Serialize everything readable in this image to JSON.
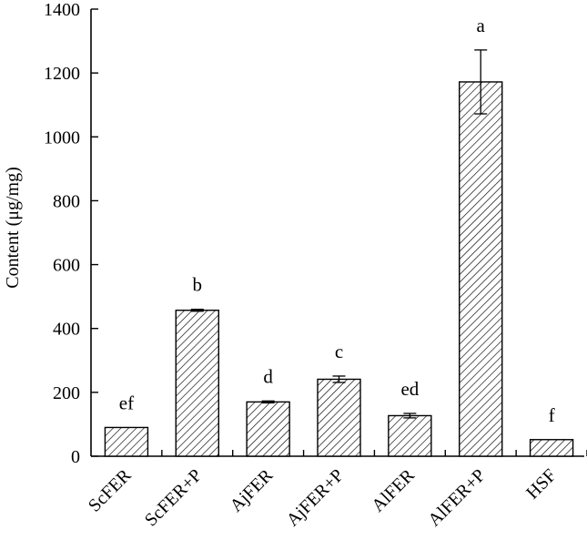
{
  "chart_data": {
    "type": "bar",
    "title": "",
    "xlabel": "",
    "ylabel": "Content (μg/mg)",
    "ylim": [
      0,
      1400
    ],
    "yticks": [
      0,
      200,
      400,
      600,
      800,
      1000,
      1200,
      1400
    ],
    "categories": [
      "ScFER",
      "ScFER+P",
      "AjFER",
      "AjFER+P",
      "AlFER",
      "AlFER+P",
      "HSF"
    ],
    "values": [
      90,
      457,
      170,
      241,
      127,
      1172,
      52
    ],
    "errors": [
      0,
      3,
      3,
      10,
      7,
      100,
      0
    ],
    "significance": [
      "ef",
      "b",
      "d",
      "c",
      "ed",
      "a",
      "f"
    ],
    "fill_pattern": "diagonal-hatch",
    "grid": false,
    "legend": "none"
  }
}
